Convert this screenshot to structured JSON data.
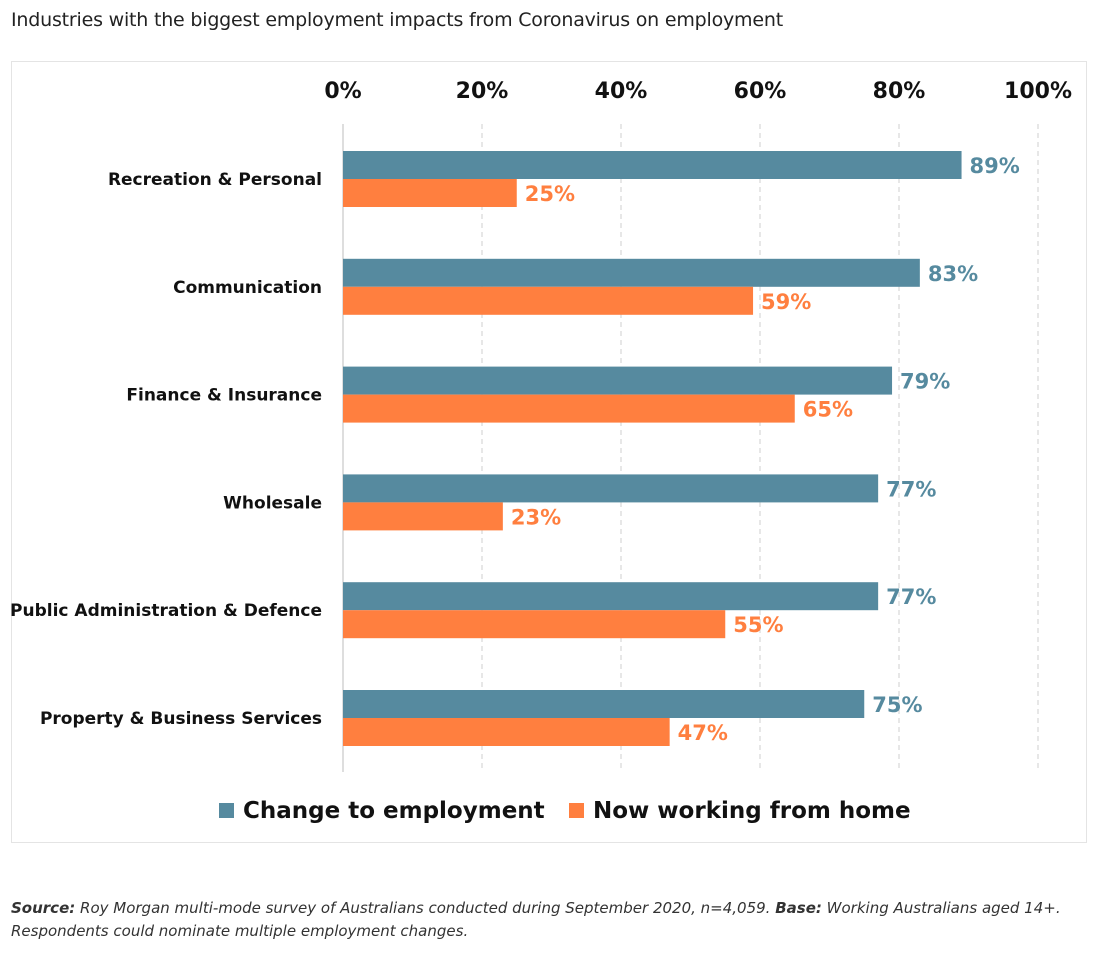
{
  "page": {
    "title": "Industries with the biggest employment impacts from Coronavirus on employment"
  },
  "chart_data": {
    "type": "bar",
    "orientation": "horizontal",
    "title": "Industries with the biggest employment impacts from Coronavirus on employment",
    "categories": [
      "Recreation & Personal",
      "Communication",
      "Finance & Insurance",
      "Wholesale",
      "Public Administration & Defence",
      "Property & Business Services"
    ],
    "series": [
      {
        "name": "Change to employment",
        "color": "#568a9f",
        "values": [
          89,
          83,
          79,
          77,
          77,
          75
        ]
      },
      {
        "name": "Now working from home",
        "color": "#ff7f3f",
        "values": [
          25,
          59,
          65,
          23,
          55,
          47
        ]
      }
    ],
    "xlim": [
      0,
      100
    ],
    "xticks": [
      0,
      20,
      40,
      60,
      80,
      100
    ],
    "tick_suffix": "%",
    "value_suffix": "%",
    "axis_position": "top",
    "grid": true,
    "legend_position": "bottom"
  },
  "footer": {
    "source_label": "Source:",
    "source_text": "Roy Morgan multi-mode survey of Australians conducted during September 2020, n=4,059.",
    "base_label": "Base:",
    "base_text": "Working Australians aged 14+. Respondents could nominate multiple employment changes."
  }
}
